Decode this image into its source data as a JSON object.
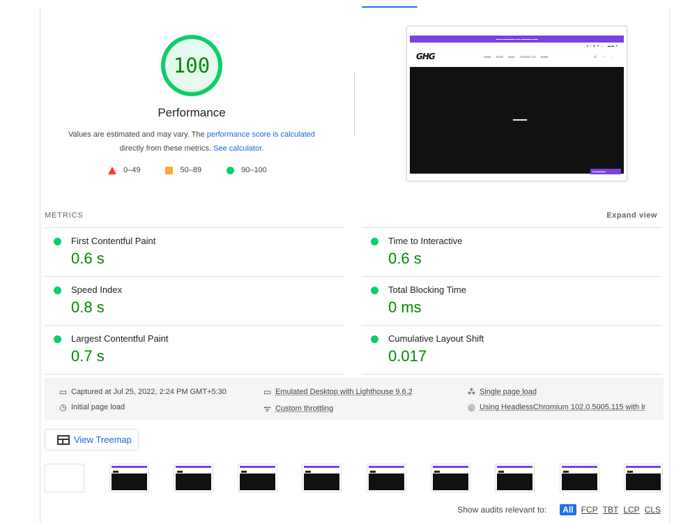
{
  "gauge": {
    "score": "100",
    "title": "Performance",
    "desc_prefix": "Values are estimated and may vary. The ",
    "desc_link1": "performance score is calculated",
    "desc_mid": " directly from these metrics. ",
    "desc_link2": "See calculator",
    "desc_suffix": ".",
    "score_fraction": 1.0,
    "color": "#0cce6b"
  },
  "legend": [
    {
      "range": "0–49",
      "icon": "fail-triangle-icon",
      "color": "#ff3333"
    },
    {
      "range": "50–89",
      "icon": "average-square-icon",
      "color": "#ffaa33"
    },
    {
      "range": "90–100",
      "icon": "pass-circle-icon",
      "color": "#0cce6b"
    }
  ],
  "metrics": {
    "heading": "METRICS",
    "expand_label": "Expand view",
    "items": [
      {
        "title": "First Contentful Paint",
        "value": "0.6 s"
      },
      {
        "title": "Time to Interactive",
        "value": "0.6 s"
      },
      {
        "title": "Speed Index",
        "value": "0.8 s"
      },
      {
        "title": "Total Blocking Time",
        "value": "0 ms"
      },
      {
        "title": "Largest Contentful Paint",
        "value": "0.7 s"
      },
      {
        "title": "Cumulative Layout Shift",
        "value": "0.017"
      }
    ]
  },
  "runtime": {
    "captured": "Captured at Jul 25, 2022, 2:24 PM GMT+5:30",
    "initial": "Initial page load",
    "emulated": "Emulated Desktop with Lighthouse 9.6.2",
    "throttling": "Custom throttling",
    "single": "Single page load",
    "chromium": "Using HeadlessChromium 102.0.5005.115 with lr"
  },
  "treemap_label": "View Treemap",
  "final_screenshot": {
    "logo": "GHG",
    "nav": [
      "HOME",
      "SHOP",
      "FAQS",
      "CONTACT US",
      "MORE"
    ]
  },
  "filter": {
    "label": "Show audits relevant to:",
    "options": [
      "All",
      "FCP",
      "TBT",
      "LCP",
      "CLS"
    ]
  },
  "colors": {
    "pass": "#008800",
    "link": "#1967d2",
    "accent": "#1a73e8",
    "brand_purple": "#7b3fe4"
  }
}
